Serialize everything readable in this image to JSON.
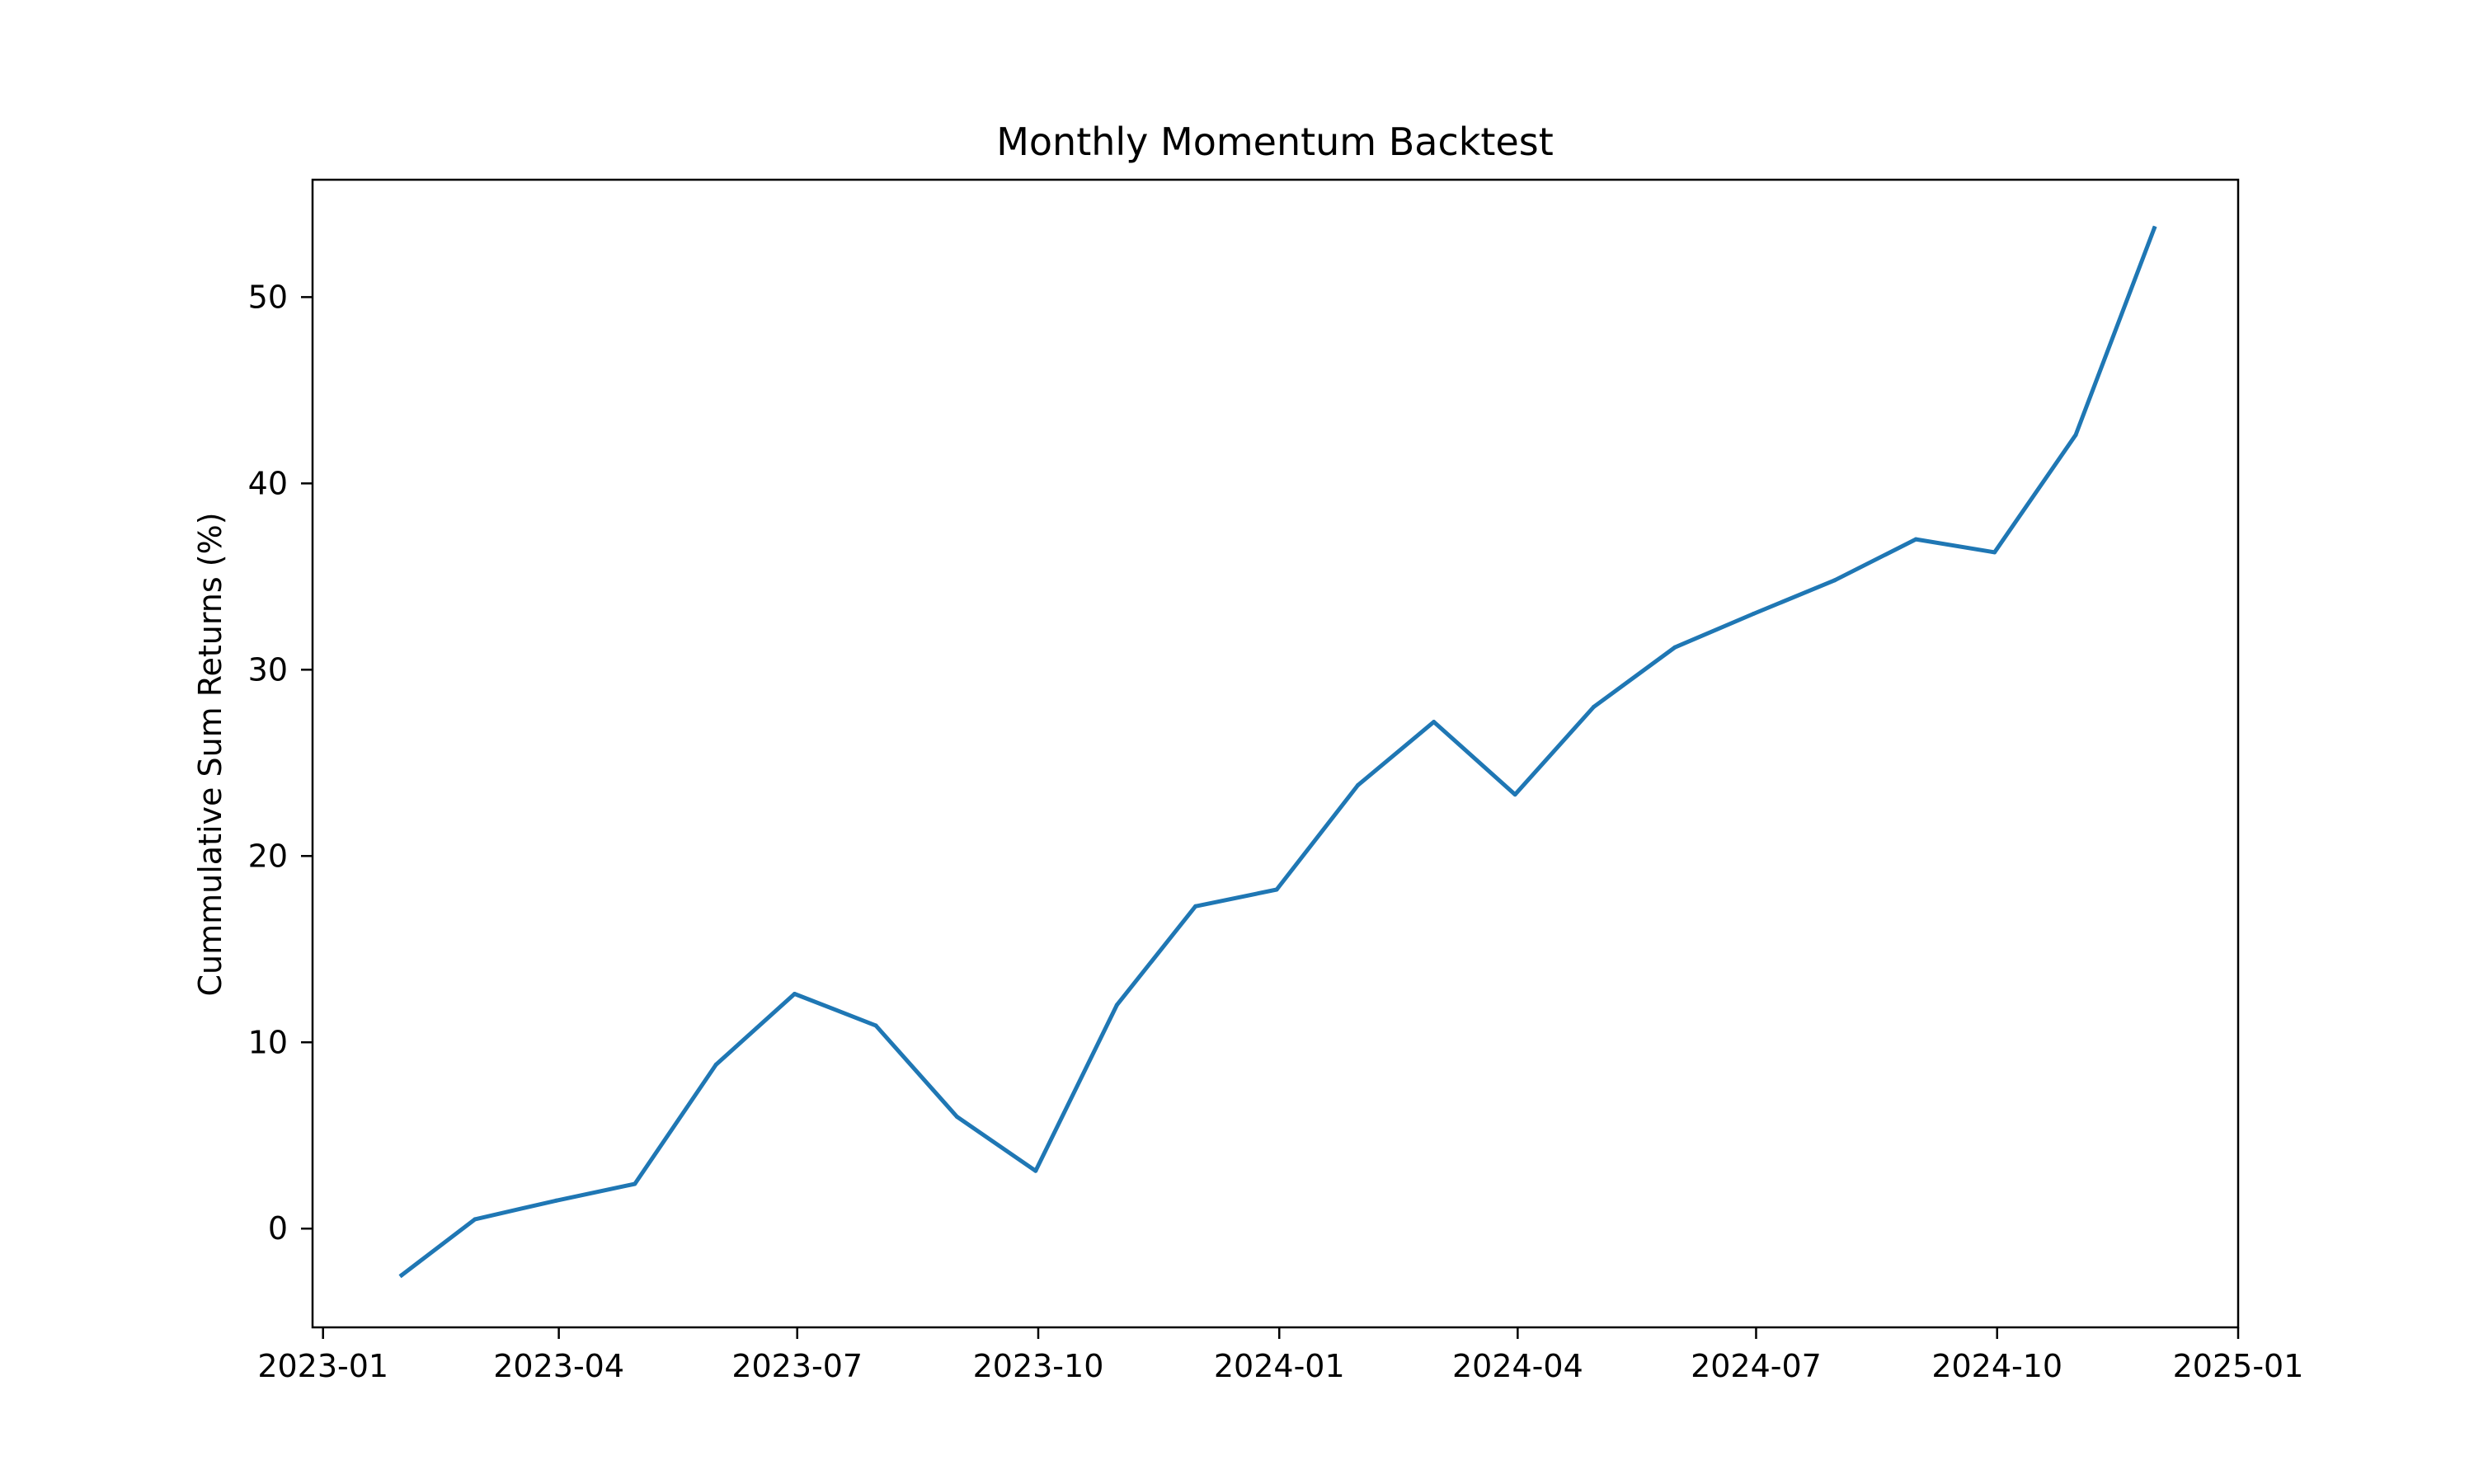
{
  "chart_data": {
    "type": "line",
    "title": "Monthly Momentum Backtest",
    "xlabel": "",
    "ylabel": "Cummulative Sum Returns (%)",
    "x_ticks": [
      "2023-01",
      "2023-04",
      "2023-07",
      "2023-10",
      "2024-01",
      "2024-04",
      "2024-07",
      "2024-10",
      "2025-01"
    ],
    "y_ticks": [
      0,
      10,
      20,
      30,
      40,
      50
    ],
    "xlim": [
      "2022-12-28",
      "2025-01-01"
    ],
    "ylim": [
      -5.3,
      56.3
    ],
    "grid": false,
    "legend": false,
    "colors": {
      "line": "#1f77b4",
      "axes": "#000000"
    },
    "series": [
      {
        "x": [
          "2023-01-31",
          "2023-02-28",
          "2023-03-31",
          "2023-04-30",
          "2023-05-31",
          "2023-06-30",
          "2023-07-31",
          "2023-08-31",
          "2023-09-30",
          "2023-10-31",
          "2023-11-30",
          "2023-12-31",
          "2024-01-31",
          "2024-02-29",
          "2024-03-31",
          "2024-04-30",
          "2024-05-31",
          "2024-06-30",
          "2024-07-31",
          "2024-08-31",
          "2024-09-30",
          "2024-10-31",
          "2024-11-30"
        ],
        "values": [
          -2.5,
          0.5,
          1.5,
          2.4,
          8.8,
          12.6,
          10.9,
          6.0,
          3.1,
          12.0,
          17.3,
          18.2,
          23.8,
          27.2,
          23.3,
          28.0,
          31.2,
          33.0,
          34.8,
          37.0,
          36.3,
          42.6,
          53.7
        ]
      }
    ]
  }
}
